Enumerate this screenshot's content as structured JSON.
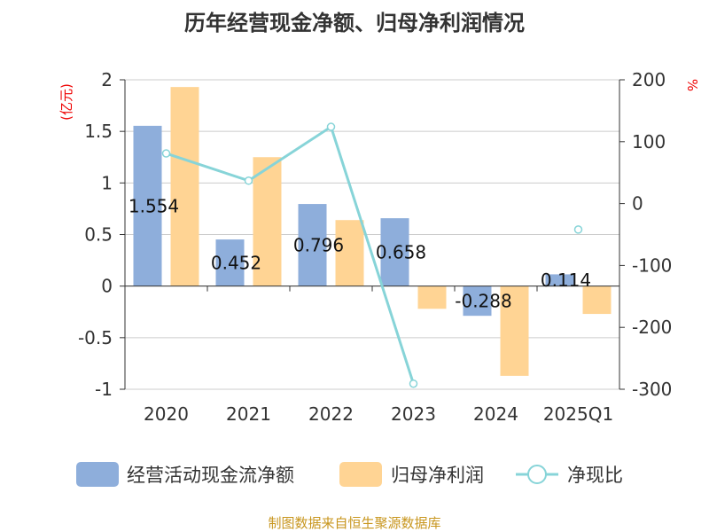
{
  "chart_data": {
    "type": "bar+line",
    "title": "历年经营现金净额、归母净利润情况",
    "ylabel_left": "(亿元)",
    "ylabel_right": "%",
    "ylim_left": [
      -1,
      2
    ],
    "ylim_right": [
      -300,
      200
    ],
    "yticks_left": [
      "2",
      "1.5",
      "1",
      "0.5",
      "0",
      "-0.5",
      "-1"
    ],
    "yticks_right": [
      "200",
      "100",
      "0",
      "-100",
      "-200",
      "-300"
    ],
    "categories": [
      "2020",
      "2021",
      "2022",
      "2023",
      "2024",
      "2025Q1"
    ],
    "series": [
      {
        "name": "经营活动现金流净额",
        "type": "bar",
        "axis": "left",
        "color": "#8eaedb",
        "values": [
          1.554,
          0.452,
          0.796,
          0.658,
          -0.288,
          0.114
        ],
        "labels": [
          "1.554",
          "0.452",
          "0.796",
          "0.658",
          "-0.288",
          "0.114"
        ]
      },
      {
        "name": "归母净利润",
        "type": "bar",
        "axis": "left",
        "color": "#ffd494",
        "values": [
          1.93,
          1.25,
          0.64,
          -0.22,
          -0.87,
          -0.27
        ]
      },
      {
        "name": "净现比",
        "type": "line",
        "axis": "right",
        "color": "#87d4d8",
        "values": [
          81,
          37,
          124,
          -291,
          null,
          -42
        ]
      }
    ],
    "legend_position": "bottom",
    "source": "制图数据来自恒生聚源数据库"
  }
}
